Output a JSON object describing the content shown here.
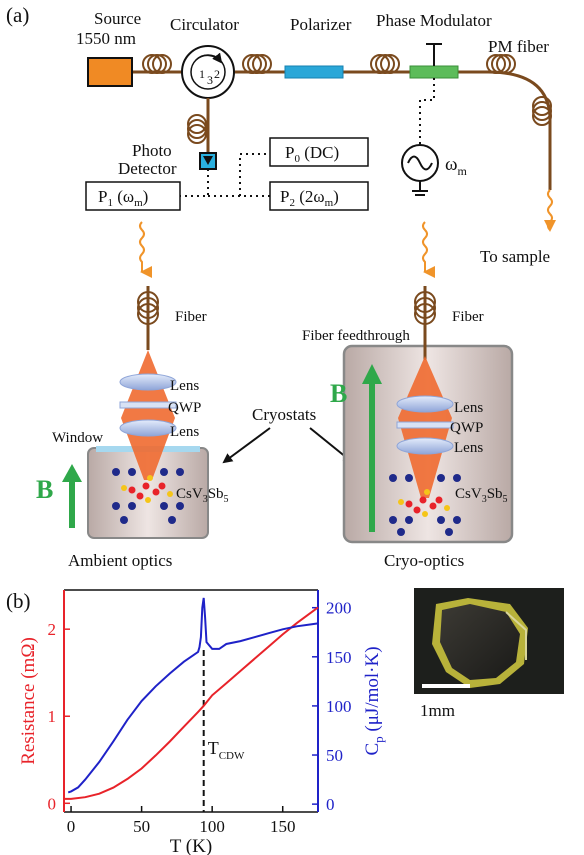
{
  "panel_a": {
    "panel_label": "(a)",
    "source_line1": "Source",
    "source_line2": "1550 nm",
    "circulator": "Circulator",
    "circ_port1": "1",
    "circ_port2": "2",
    "circ_port3": "3",
    "polarizer": "Polarizer",
    "phase_modulator": "Phase Modulator",
    "pm_fiber": "PM fiber",
    "photo_line1": "Photo",
    "photo_line2": "Detector",
    "p0_main": "P",
    "p0_sub": "0",
    "p0_rest": " (DC)",
    "p1_main": "P",
    "p1_sub": "1",
    "p1_rest_a": " (ω",
    "p1_rest_sub": "m",
    "p1_rest_b": ")",
    "p2_main": "P",
    "p2_sub": "2",
    "p2_rest_a": " (2ω",
    "p2_rest_sub": "m",
    "p2_rest_b": ")",
    "omega": "ω",
    "omega_sub": "m",
    "to_sample": "To sample",
    "fiber_left": "Fiber",
    "fiber_right": "Fiber",
    "fiber_feedthrough": "Fiber feedthrough",
    "lens": "Lens",
    "qwp": "QWP",
    "cryostats": "Cryostats",
    "window": "Window",
    "b_field": "B",
    "sample_main": "CsV",
    "sample_sub1": "3",
    "sample_mid": "Sb",
    "sample_sub2": "5",
    "ambient_optics": "Ambient optics",
    "cryo_optics": "Cryo-optics"
  },
  "panel_b": {
    "panel_label": "(b)",
    "scale_bar": "1mm",
    "tcdw_main": "T",
    "tcdw_sub": "CDW"
  },
  "colors": {
    "resistance": "#e8232a",
    "heat_capacity": "#1f22c8",
    "source": "#f08a24",
    "polarizer": "#2aa7d8",
    "modulator": "#5cbc5a",
    "fiber": "#7a4a1e",
    "beam": "#f06a30",
    "b_arrow": "#2fa84a"
  },
  "chart_data": {
    "type": "line",
    "xlabel": "T (K)",
    "ylabel_left": "Resistance (mΩ)",
    "ylabel_right_main": "C",
    "ylabel_right_sub": "p",
    "ylabel_right_rest": " (μJ/mol·K)",
    "xlim": [
      -5,
      175
    ],
    "ylim_left": [
      -0.1,
      2.45
    ],
    "ylim_right": [
      -8,
      218
    ],
    "x_ticks": [
      0,
      50,
      100,
      150
    ],
    "y_ticks_left": [
      0,
      1,
      2
    ],
    "y_ticks_right": [
      0,
      50,
      100,
      150,
      200
    ],
    "vline_x": 94,
    "series": [
      {
        "name": "Resistance",
        "axis": "left",
        "x": [
          -5,
          0,
          10,
          20,
          30,
          40,
          50,
          60,
          70,
          80,
          90,
          94,
          100,
          110,
          120,
          130,
          140,
          150,
          160,
          175
        ],
        "y": [
          0.05,
          0.05,
          0.07,
          0.11,
          0.18,
          0.28,
          0.4,
          0.55,
          0.71,
          0.88,
          1.05,
          1.12,
          1.24,
          1.38,
          1.52,
          1.66,
          1.8,
          1.94,
          2.07,
          2.25
        ]
      },
      {
        "name": "Heat capacity",
        "axis": "right",
        "x": [
          -2,
          0,
          5,
          10,
          20,
          30,
          40,
          50,
          60,
          70,
          80,
          85,
          90,
          91,
          92,
          93,
          94,
          95,
          96,
          100,
          105,
          110,
          120,
          130,
          140,
          150,
          160,
          170,
          175
        ],
        "y": [
          12,
          13,
          17,
          25,
          43,
          64,
          86,
          105,
          120,
          133,
          145,
          150,
          155,
          160,
          170,
          200,
          210,
          190,
          165,
          158,
          158,
          163,
          166,
          170,
          174,
          178,
          181,
          183,
          184
        ]
      }
    ]
  }
}
